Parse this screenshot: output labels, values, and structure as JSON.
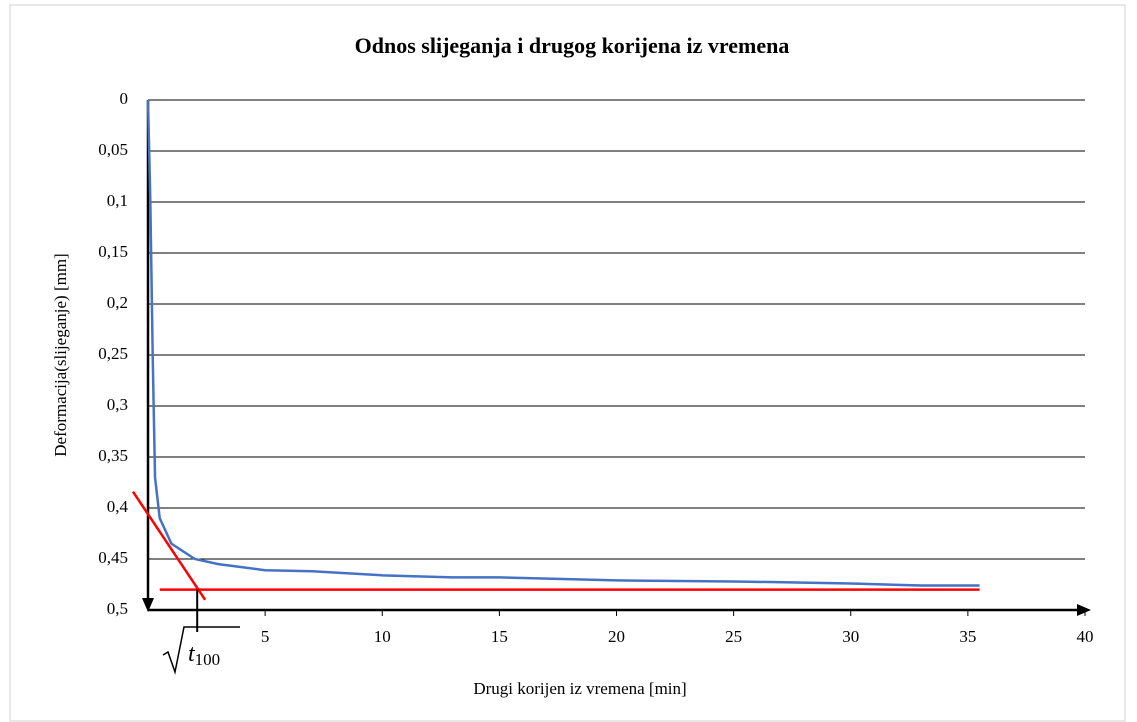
{
  "chart_data": {
    "type": "line",
    "title": "Odnos slijeganja i drugog korijena iz vremena",
    "xlabel": "Drugi korijen iz vremena [min]",
    "ylabel": "Deformacija(slijeganje) [mm]",
    "xlim": [
      0,
      40
    ],
    "xticks": [
      5,
      10,
      15,
      20,
      25,
      30,
      35,
      40
    ],
    "ylim": [
      0,
      0.5
    ],
    "y_inverted": true,
    "yticks": [
      0,
      {
        "value": 0.05,
        "label": "0,05"
      },
      {
        "value": 0.1,
        "label": "0,1"
      },
      {
        "value": 0.15,
        "label": "0,15"
      },
      {
        "value": 0.2,
        "label": "0,2"
      },
      {
        "value": 0.25,
        "label": "0,25"
      },
      {
        "value": 0.3,
        "label": "0,3"
      },
      {
        "value": 0.35,
        "label": "0,35"
      },
      {
        "value": 0.4,
        "label": "0,4"
      },
      {
        "value": 0.45,
        "label": "0,45"
      },
      {
        "value": 0.5,
        "label": "0,5"
      }
    ],
    "grid": true,
    "series": [
      {
        "color": "#4472c4",
        "x": [
          0,
          0.1,
          0.2,
          0.3,
          0.5,
          1,
          2,
          3,
          4,
          5,
          7,
          10,
          13,
          15,
          20,
          25,
          30,
          33,
          35.5
        ],
        "values": [
          0,
          0.1,
          0.25,
          0.37,
          0.41,
          0.435,
          0.45,
          0.455,
          0.458,
          0.461,
          0.462,
          0.466,
          0.468,
          0.468,
          0.471,
          0.472,
          0.474,
          0.476,
          0.476
        ]
      },
      {
        "color": "#ff0000",
        "x": [
          0.5,
          35.5
        ],
        "values": [
          0.48,
          0.48
        ]
      },
      {
        "color": "#ff0000",
        "x": [
          -0.64,
          2.44
        ],
        "values": [
          0.384,
          0.49
        ]
      }
    ],
    "annotation": {
      "text": "t",
      "subscript": "100",
      "x": 2.1
    }
  }
}
